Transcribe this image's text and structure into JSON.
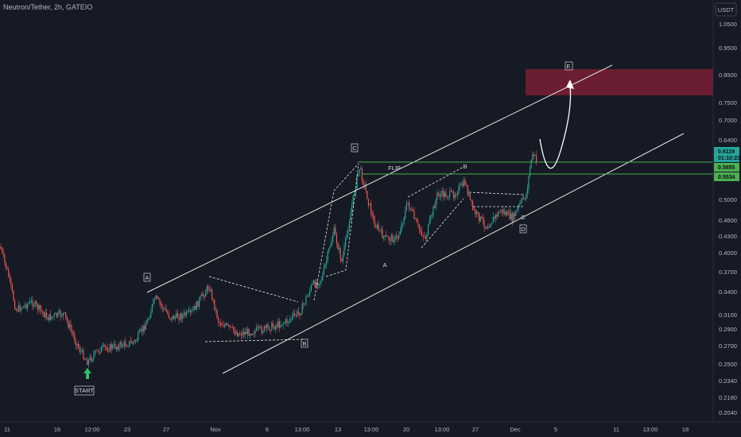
{
  "header": {
    "symbol_title": "Neutron/Tether, 2h, GATEIO",
    "currency": "USDT"
  },
  "colors": {
    "background": "#161a25",
    "up_candle": "#26a69a",
    "down_candle": "#ef5350",
    "channel_line": "#e6e6e6",
    "level_line": "#4caf50",
    "target_zone": "#7a1f35",
    "start_arrow": "#2ebd6b"
  },
  "chart_data": {
    "type": "candlestick",
    "title": "Neutron/Tether, 2h, GATEIO",
    "y_scale": "log",
    "ylim": [
      0.195,
      1.2
    ],
    "x_tick_labels": [
      "11",
      "16",
      "12:00",
      "23",
      "27",
      "Nov",
      "6",
      "13:00",
      "13",
      "13:00",
      "20",
      "13:00",
      "27",
      "Dec",
      "5",
      "11",
      "13:00",
      "18"
    ],
    "y_tick_labels": [
      "1.0500",
      "0.9500",
      "0.8500",
      "0.7500",
      "0.7000",
      "0.6400",
      "0.5500",
      "0.5000",
      "0.4600",
      "0.4300",
      "0.4000",
      "0.3700",
      "0.3400",
      "0.3100",
      "0.2900",
      "0.2700",
      "0.2500",
      "0.2340",
      "0.2180",
      "0.2040"
    ],
    "price_badges": [
      {
        "label": "0.6119",
        "sub": "01:10:23",
        "color": "#26a69a",
        "value": 0.6119
      },
      {
        "label": "0.5855",
        "color": "#4caf50",
        "value": 0.5855
      },
      {
        "label": "0.5534",
        "color": "#4caf50",
        "value": 0.5534
      }
    ],
    "horizontal_levels": [
      0.5855,
      0.5534
    ],
    "target_zone": [
      0.78,
      0.88
    ],
    "annotations": [
      "A",
      "B",
      "C",
      "A",
      "B",
      "C",
      "D",
      "E",
      "FLIP",
      "START"
    ]
  }
}
